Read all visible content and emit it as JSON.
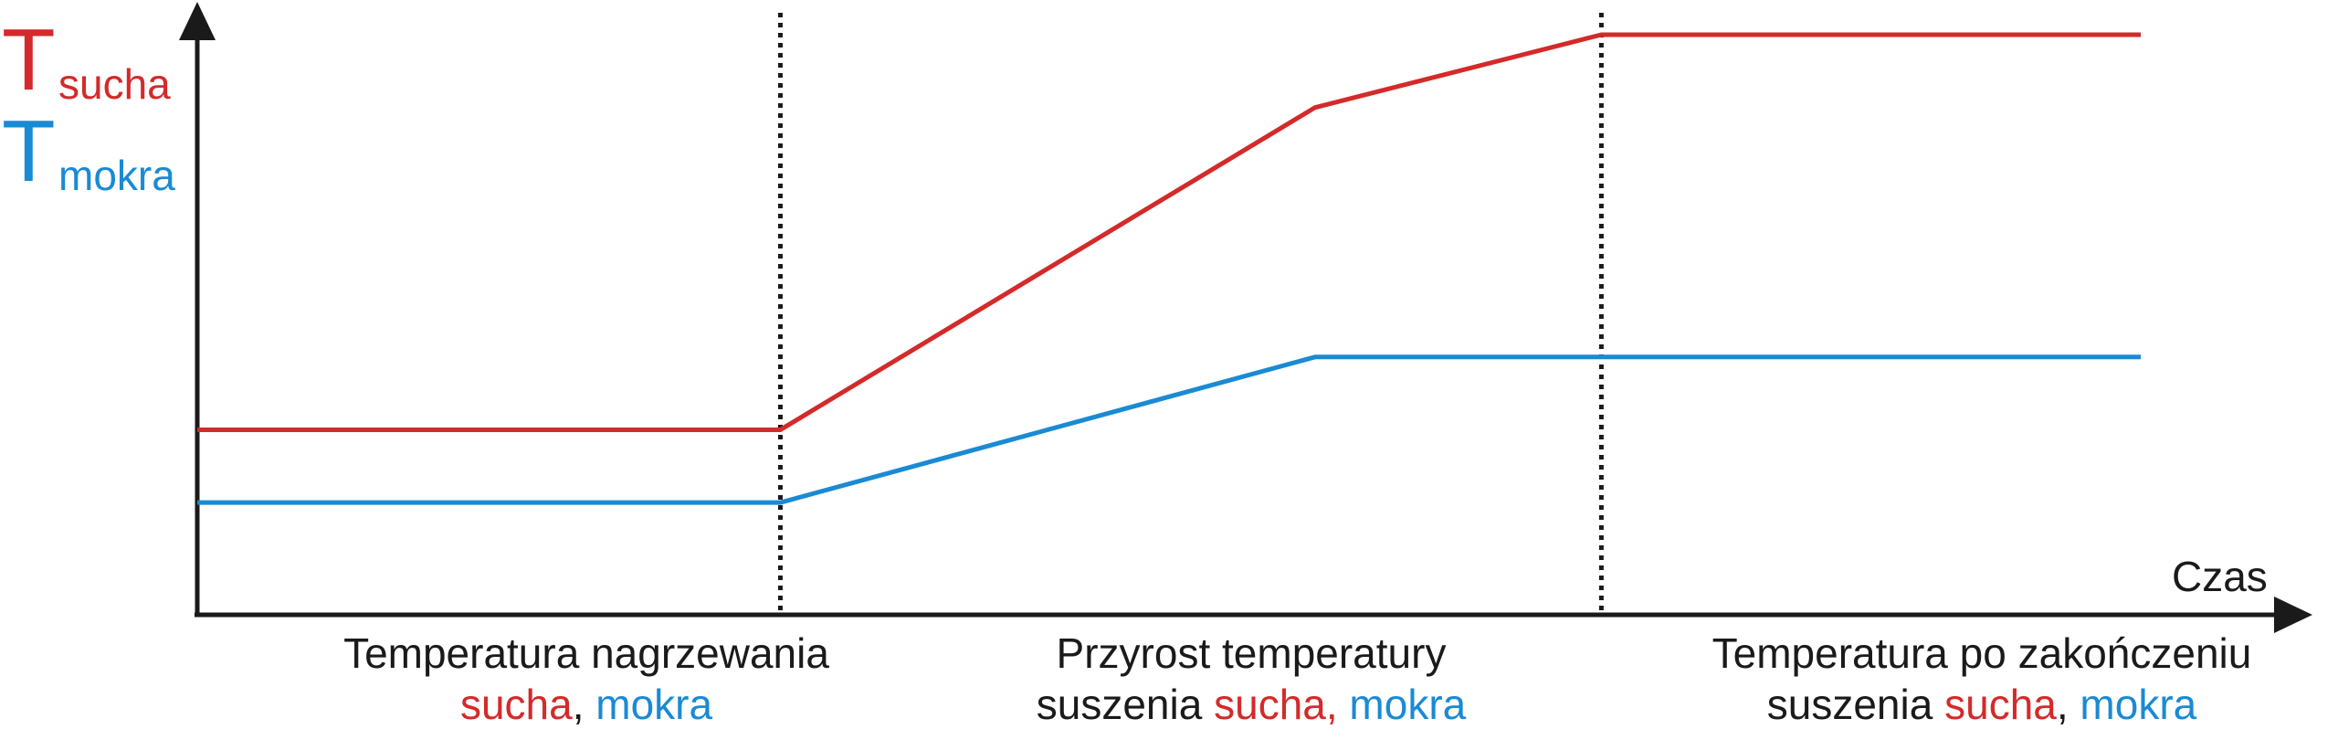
{
  "chart_data": {
    "type": "line",
    "title": "",
    "xlabel": "Czas",
    "ylabel": "",
    "grid": false,
    "legend_placement": "top-left",
    "colors": {
      "sucha": "#d42a2a",
      "mokra": "#1a8ad4",
      "axis": "#1a1a1a"
    },
    "x": [
      0,
      1,
      1.917,
      2.408,
      3.333
    ],
    "xlim": [
      0,
      3.333
    ],
    "ylim": [
      0,
      10
    ],
    "phase_boundaries": [
      1,
      2.408
    ],
    "legend": [
      {
        "symbol": "T",
        "sub": "sucha",
        "color": "#d42a2a"
      },
      {
        "symbol": "T",
        "sub": "mokra",
        "color": "#1a8ad4"
      }
    ],
    "series": [
      {
        "name": "T sucha",
        "color": "#d42a2a",
        "values": [
          2.4,
          2.4,
          8.6,
          10.0,
          10.0
        ]
      },
      {
        "name": "T mokra",
        "color": "#1a8ad4",
        "values": [
          1.0,
          1.0,
          3.8,
          3.8,
          3.8
        ]
      }
    ],
    "phases": [
      {
        "line1": [
          {
            "text": "Temperatura nagrzewania",
            "color": "#1a1a1a"
          }
        ],
        "line2": [
          {
            "text": "sucha",
            "color": "#d42a2a"
          },
          {
            "text": ", ",
            "color": "#1a1a1a"
          },
          {
            "text": "mokra",
            "color": "#1a8ad4"
          }
        ]
      },
      {
        "line1": [
          {
            "text": "Przyrost temperatury",
            "color": "#1a1a1a"
          }
        ],
        "line2": [
          {
            "text": "suszenia ",
            "color": "#1a1a1a"
          },
          {
            "text": "sucha, ",
            "color": "#d42a2a"
          },
          {
            "text": "mokra",
            "color": "#1a8ad4"
          }
        ]
      },
      {
        "line1": [
          {
            "text": "Temperatura po zakończeniu",
            "color": "#1a1a1a"
          }
        ],
        "line2": [
          {
            "text": "suszenia ",
            "color": "#1a1a1a"
          },
          {
            "text": "sucha",
            "color": "#d42a2a"
          },
          {
            "text": ", ",
            "color": "#1a1a1a"
          },
          {
            "text": "mokra",
            "color": "#1a8ad4"
          }
        ]
      }
    ]
  }
}
